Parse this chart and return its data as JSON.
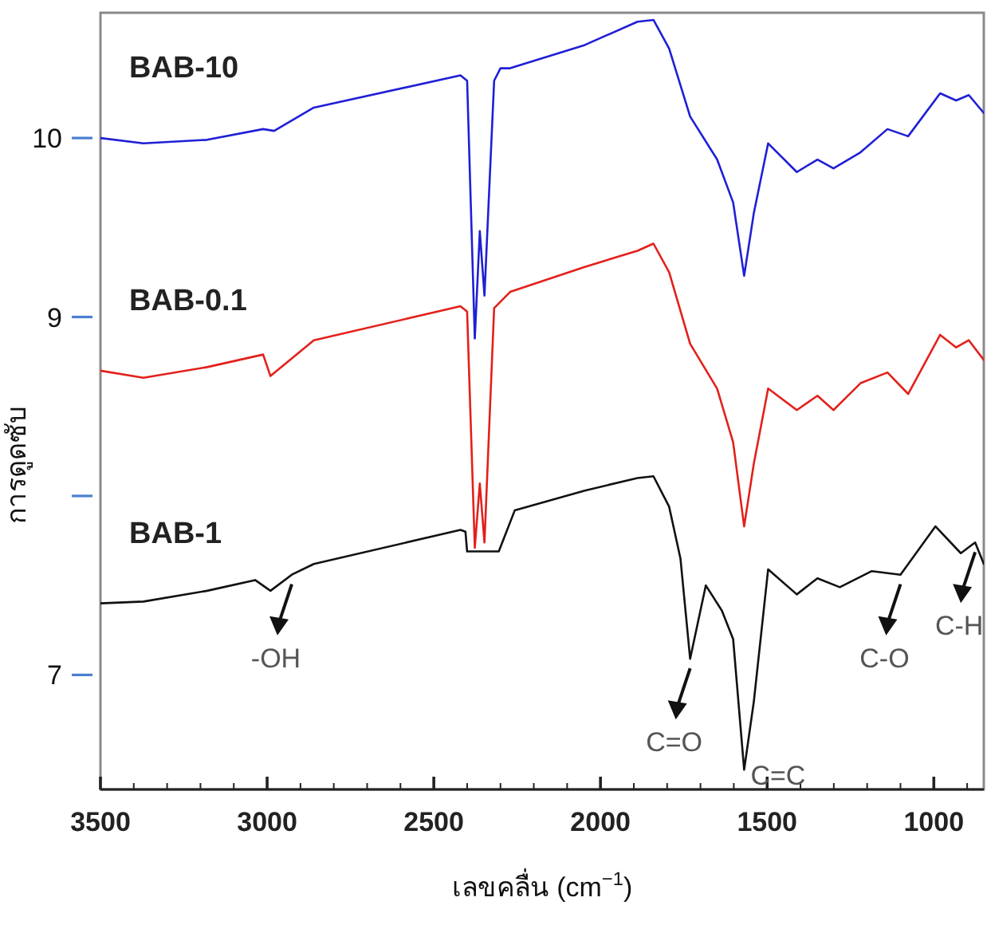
{
  "chart_data": {
    "type": "line",
    "xlabel": "เลขคลื่น (cm$^{−1}$)",
    "ylabel": "การดูดซับ",
    "xlim": [
      3500,
      850
    ],
    "ylim": [
      6.36,
      10.7
    ],
    "xticks": [
      3500,
      {
        "value": 3400,
        "label": null
      },
      {
        "value": 3300,
        "label": null
      },
      {
        "value": 3200,
        "label": null
      },
      {
        "value": 3100,
        "label": null
      },
      3000,
      {
        "value": 2900,
        "label": null
      },
      {
        "value": 2800,
        "label": null
      },
      {
        "value": 2700,
        "label": null
      },
      {
        "value": 2600,
        "label": null
      },
      2500,
      {
        "value": 2400,
        "label": null
      },
      {
        "value": 2300,
        "label": null
      },
      {
        "value": 2200,
        "label": null
      },
      {
        "value": 2100,
        "label": null
      },
      2000,
      {
        "value": 1900,
        "label": null
      },
      {
        "value": 1800,
        "label": null
      },
      {
        "value": 1700,
        "label": null
      },
      {
        "value": 1600,
        "label": null
      },
      1500,
      {
        "value": 1400,
        "label": null
      },
      {
        "value": 1300,
        "label": null
      },
      {
        "value": 1200,
        "label": null
      },
      {
        "value": 1100,
        "label": null
      },
      1000,
      {
        "value": 900,
        "label": null
      }
    ],
    "yticks": [
      7,
      {
        "value": 8,
        "label": null
      },
      9,
      10
    ],
    "grid": false,
    "legend": false,
    "marker": "none",
    "line_style": "solid",
    "series": [
      {
        "name": "BAB-10",
        "color": "#1f1fd6",
        "x": [
          3500,
          3371,
          3180,
          3012,
          2979,
          2860,
          2420,
          2400,
          2377,
          2362,
          2348,
          2319,
          2300,
          2271,
          2047,
          1889,
          1841,
          1794,
          1731,
          1650,
          1602,
          1569,
          1540,
          1497,
          1411,
          1349,
          1301,
          1220,
          1139,
          1077,
          981,
          933,
          895,
          850
        ],
        "values": [
          10.0,
          9.97,
          9.99,
          10.05,
          10.04,
          10.17,
          10.35,
          10.32,
          8.88,
          9.48,
          9.12,
          10.32,
          10.39,
          10.39,
          10.52,
          10.65,
          10.66,
          10.5,
          10.12,
          9.88,
          9.64,
          9.23,
          9.58,
          9.97,
          9.81,
          9.88,
          9.83,
          9.92,
          10.05,
          10.01,
          10.25,
          10.21,
          10.24,
          10.14
        ]
      },
      {
        "name": "BAB-0.1",
        "color": "#e3201b",
        "x": [
          3500,
          3371,
          3180,
          3012,
          2990,
          2860,
          2420,
          2400,
          2377,
          2362,
          2348,
          2319,
          2271,
          2047,
          1889,
          1841,
          1794,
          1731,
          1650,
          1602,
          1569,
          1540,
          1497,
          1411,
          1349,
          1301,
          1220,
          1139,
          1077,
          981,
          933,
          895,
          850
        ],
        "values": [
          8.7,
          8.66,
          8.72,
          8.79,
          8.67,
          8.87,
          9.06,
          9.03,
          7.71,
          8.07,
          7.74,
          9.05,
          9.14,
          9.28,
          9.37,
          9.41,
          9.25,
          8.85,
          8.6,
          8.3,
          7.83,
          8.18,
          8.6,
          8.48,
          8.56,
          8.48,
          8.63,
          8.69,
          8.57,
          8.9,
          8.83,
          8.87,
          8.76
        ]
      },
      {
        "name": "BAB-1",
        "color": "#111111",
        "x": [
          3500,
          3371,
          3180,
          3036,
          2990,
          2926,
          2860,
          2420,
          2405,
          2400,
          2305,
          2257,
          2047,
          1889,
          1841,
          1794,
          1760,
          1731,
          1684,
          1636,
          1602,
          1569,
          1540,
          1497,
          1411,
          1349,
          1282,
          1186,
          1100,
          995,
          919,
          876,
          850
        ],
        "values": [
          7.4,
          7.41,
          7.47,
          7.53,
          7.47,
          7.56,
          7.62,
          7.81,
          7.8,
          7.69,
          7.69,
          7.92,
          8.03,
          8.1,
          8.11,
          7.94,
          7.65,
          7.09,
          7.5,
          7.36,
          7.2,
          6.47,
          6.85,
          7.59,
          7.45,
          7.54,
          7.49,
          7.58,
          7.56,
          7.83,
          7.68,
          7.74,
          7.62
        ]
      }
    ],
    "annotations": [
      {
        "text": "-OH",
        "x": 2926,
        "y": 7.56
      },
      {
        "text": "C=O",
        "x": 1731,
        "y": 7.09
      },
      {
        "text": "C=C",
        "x": 1569,
        "y": 6.47
      },
      {
        "text": "C-O",
        "x": 1100,
        "y": 7.56
      },
      {
        "text": "C-H",
        "x": 876,
        "y": 7.74
      }
    ]
  }
}
